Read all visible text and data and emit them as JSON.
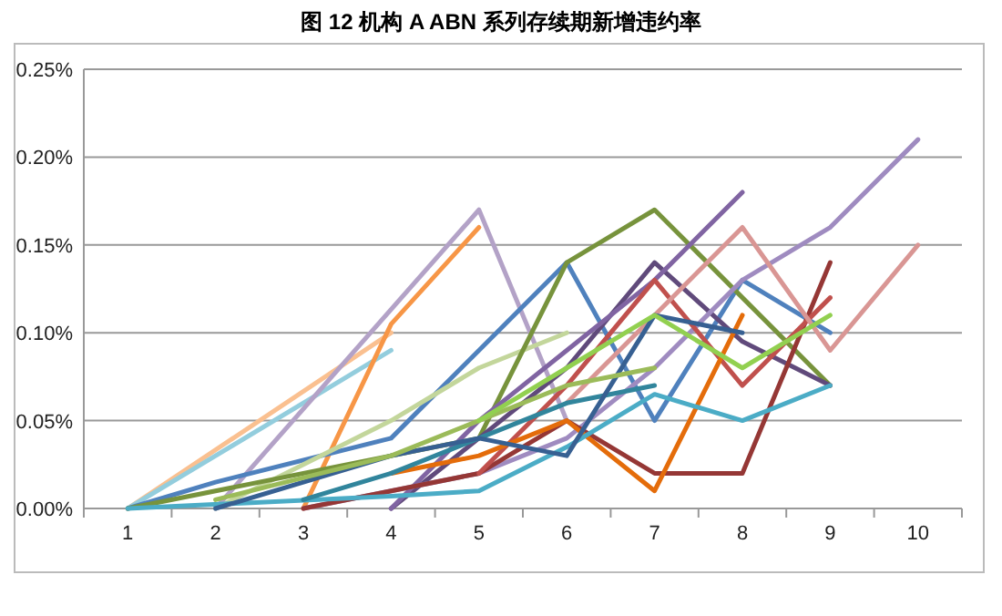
{
  "chart_data": {
    "type": "line",
    "title": "图 12 机构 A ABN 系列存续期新增违约率",
    "categories": [
      "1",
      "2",
      "3",
      "4",
      "5",
      "6",
      "7",
      "8",
      "9",
      "10"
    ],
    "ylim": [
      0,
      0.25
    ],
    "yticks": [
      {
        "value": 0,
        "label": "0.00%"
      },
      {
        "value": 0.05,
        "label": "0.05%"
      },
      {
        "value": 0.1,
        "label": "0.10%"
      },
      {
        "value": 0.15,
        "label": "0.15%"
      },
      {
        "value": 0.2,
        "label": "0.20%"
      },
      {
        "value": 0.25,
        "label": "0.25%"
      }
    ],
    "grid": "y",
    "line_style": "solid",
    "series": [
      {
        "color": "#fac090",
        "values": [
          0,
          null,
          null,
          0.1,
          null,
          null,
          null,
          null,
          null,
          null
        ]
      },
      {
        "color": "#93cddd",
        "values": [
          0,
          null,
          null,
          0.09,
          null,
          null,
          null,
          null,
          null,
          null
        ]
      },
      {
        "color": "#b3a2c7",
        "values": [
          null,
          0,
          null,
          null,
          0.17,
          0.05,
          null,
          null,
          null,
          null
        ]
      },
      {
        "color": "#f79646",
        "values": [
          null,
          null,
          0,
          0.105,
          0.16,
          null,
          null,
          null,
          null,
          null
        ]
      },
      {
        "color": "#4f81bd",
        "values": [
          0,
          0.015,
          null,
          0.04,
          0.09,
          0.14,
          0.05,
          0.13,
          0.1,
          null
        ]
      },
      {
        "color": "#c3d69b",
        "values": [
          null,
          0,
          null,
          0.05,
          0.08,
          0.1,
          null,
          null,
          null,
          null
        ]
      },
      {
        "color": "#77933c",
        "values": [
          0,
          null,
          null,
          null,
          0.04,
          0.14,
          0.17,
          0.12,
          0.07,
          null
        ]
      },
      {
        "color": "#604a7b",
        "values": [
          null,
          null,
          null,
          0,
          0.04,
          0.08,
          0.14,
          0.095,
          0.07,
          null
        ]
      },
      {
        "color": "#8064a2",
        "values": [
          null,
          null,
          null,
          0,
          0.05,
          0.09,
          0.13,
          0.18,
          null,
          null
        ]
      },
      {
        "color": "#9f8bc0",
        "values": [
          null,
          null,
          0,
          null,
          0.02,
          0.04,
          0.08,
          0.13,
          0.16,
          0.21
        ]
      },
      {
        "color": "#953735",
        "values": [
          null,
          null,
          0,
          0.01,
          0.02,
          0.05,
          0.02,
          0.02,
          0.14,
          null
        ]
      },
      {
        "color": "#c0504d",
        "values": [
          null,
          null,
          null,
          null,
          0.02,
          0.07,
          0.13,
          0.07,
          0.12,
          null
        ]
      },
      {
        "color": "#d99694",
        "values": [
          null,
          null,
          null,
          null,
          null,
          0.06,
          0.11,
          0.16,
          0.09,
          0.15
        ]
      },
      {
        "color": "#e46c0a",
        "values": [
          null,
          null,
          null,
          0.02,
          0.03,
          0.05,
          0.01,
          0.11,
          null,
          null
        ]
      },
      {
        "color": "#4bacc6",
        "values": [
          0,
          null,
          null,
          0.007,
          0.01,
          0.035,
          0.065,
          0.05,
          0.07,
          null
        ]
      },
      {
        "color": "#31859c",
        "values": [
          null,
          null,
          0.005,
          0.02,
          0.04,
          0.06,
          0.07,
          null,
          null,
          null
        ]
      },
      {
        "color": "#376092",
        "values": [
          null,
          0,
          null,
          0.03,
          0.04,
          0.03,
          0.11,
          0.1,
          null,
          null
        ]
      },
      {
        "color": "#9bbb59",
        "values": [
          null,
          0.005,
          null,
          0.03,
          0.05,
          0.07,
          0.08,
          null,
          null,
          null
        ]
      },
      {
        "color": "#92d050",
        "values": [
          null,
          null,
          null,
          null,
          0.05,
          0.08,
          0.11,
          0.08,
          0.11,
          null
        ]
      }
    ]
  }
}
